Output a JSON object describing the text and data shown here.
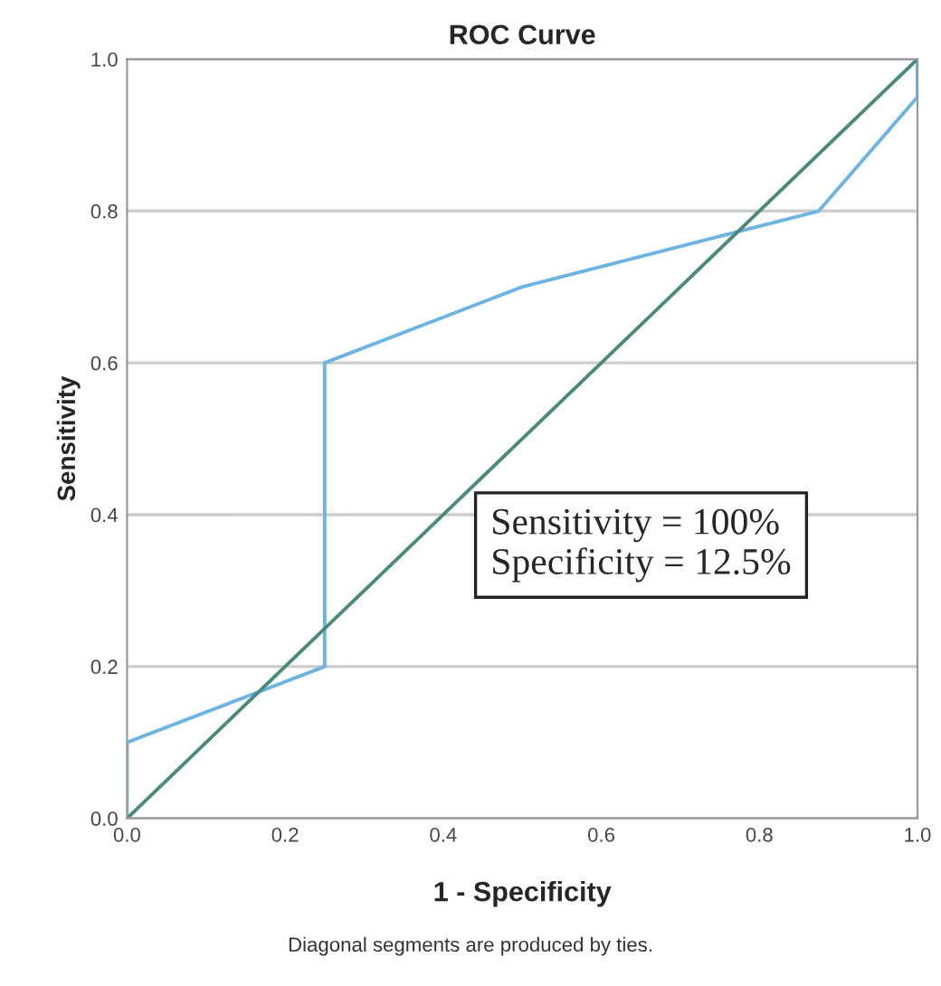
{
  "chart_data": {
    "type": "line",
    "title": "ROC Curve",
    "xlabel": "1 - Specificity",
    "ylabel": "Sensitivity",
    "series": [
      {
        "x": [
          0,
          0,
          0.25,
          0.25,
          0.5,
          0.875,
          1,
          1
        ],
        "values": [
          0,
          0.1,
          0.2,
          0.6,
          0.7,
          0.8,
          0.95,
          1
        ],
        "color": "#6cb4e4"
      },
      {
        "x": [
          0,
          1
        ],
        "values": [
          0,
          1
        ],
        "color": "#4a8a7a"
      }
    ],
    "xlim": [
      0,
      1
    ],
    "ylim": [
      0,
      1
    ],
    "xticks": [
      {
        "value": 0,
        "label": "0.0"
      },
      {
        "value": 0.2,
        "label": "0.2"
      },
      {
        "value": 0.4,
        "label": "0.4"
      },
      {
        "value": 0.6,
        "label": "0.6"
      },
      {
        "value": 0.8,
        "label": "0.8"
      },
      {
        "value": 1,
        "label": "1.0"
      }
    ],
    "yticks": [
      {
        "value": 0,
        "label": "0.0"
      },
      {
        "value": 0.2,
        "label": "0.2"
      },
      {
        "value": 0.4,
        "label": "0.4"
      },
      {
        "value": 0.6,
        "label": "0.6"
      },
      {
        "value": 0.8,
        "label": "0.8"
      },
      {
        "value": 1,
        "label": "1.0"
      }
    ],
    "grid": "y",
    "marker": "none",
    "line_style": "solid",
    "annotations": [
      "Sensitivity = 100%\nSpecificity = 12.5%",
      "Diagonal segments are produced by ties."
    ]
  }
}
